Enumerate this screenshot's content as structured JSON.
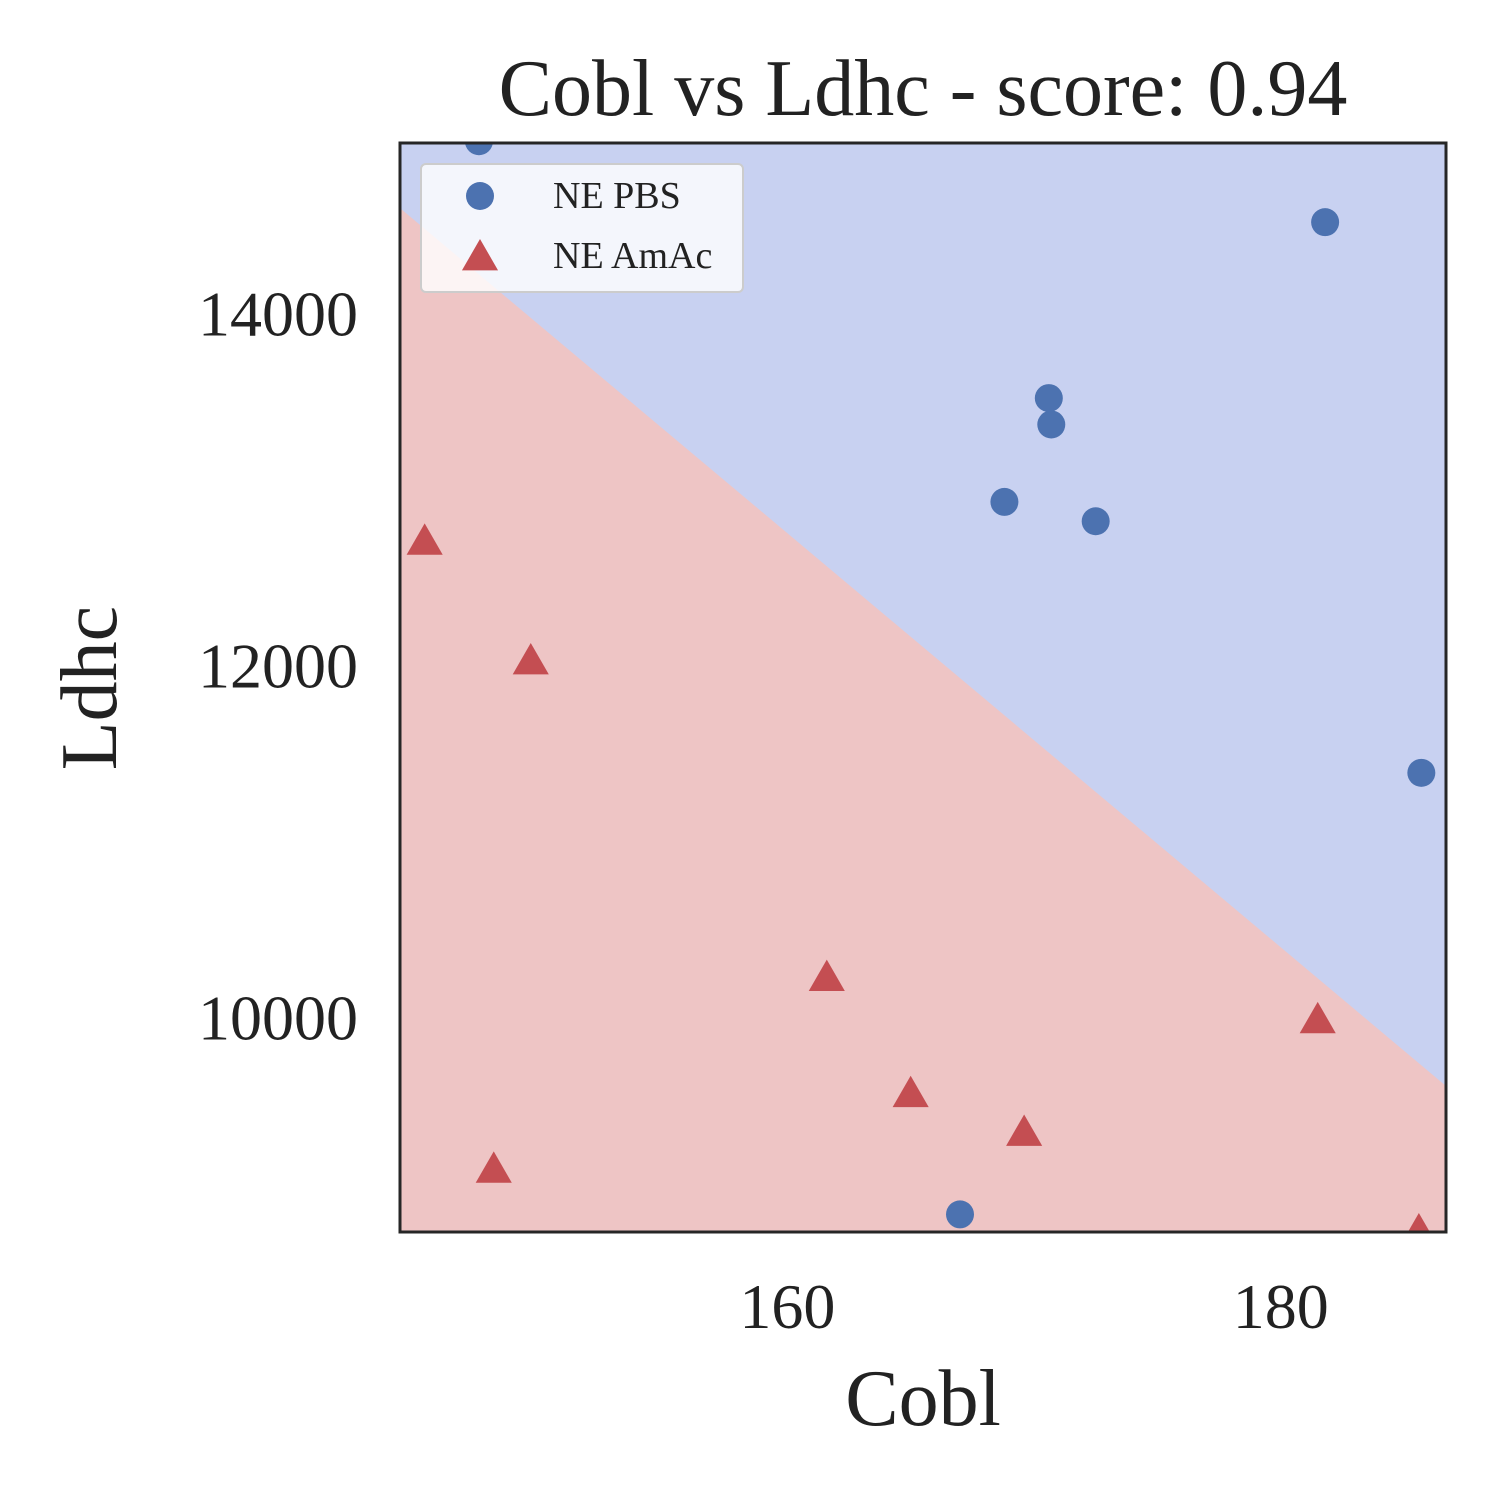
{
  "chart_data": {
    "type": "scatter",
    "title": "Cobl vs Ldhc - score: 0.94",
    "xlabel": "Cobl",
    "ylabel": "Ldhc",
    "xlim": [
      144.3,
      186.7
    ],
    "ylim": [
      8780,
      14970
    ],
    "xticks": [
      160,
      180
    ],
    "yticks": [
      10000,
      12000,
      14000
    ],
    "xtick_labels": [
      "160",
      "180"
    ],
    "ytick_labels": [
      "10000",
      "12000",
      "14000"
    ],
    "grid": false,
    "legend_position": "top-left",
    "decision_boundary": {
      "points": [
        [
          144.3,
          14600
        ],
        [
          186.7,
          9610
        ]
      ],
      "above_class": "NE PBS",
      "below_class": "NE AmAc",
      "above_color": "#c8d1f1",
      "below_color": "#eec5c5"
    },
    "series": [
      {
        "name": "NE PBS",
        "marker": "circle",
        "color": "#4c72b0",
        "points": [
          [
            147.5,
            14980
          ],
          [
            181.8,
            14520
          ],
          [
            170.6,
            13520
          ],
          [
            170.7,
            13370
          ],
          [
            168.8,
            12930
          ],
          [
            172.5,
            12820
          ],
          [
            185.7,
            11390
          ],
          [
            167.0,
            8880
          ]
        ]
      },
      {
        "name": "NE AmAc",
        "marker": "triangle",
        "color": "#c44e52",
        "points": [
          [
            145.3,
            12700
          ],
          [
            149.6,
            12020
          ],
          [
            161.6,
            10220
          ],
          [
            165.0,
            9560
          ],
          [
            169.6,
            9340
          ],
          [
            148.1,
            9130
          ],
          [
            181.5,
            9980
          ],
          [
            185.6,
            8780
          ]
        ]
      }
    ]
  }
}
